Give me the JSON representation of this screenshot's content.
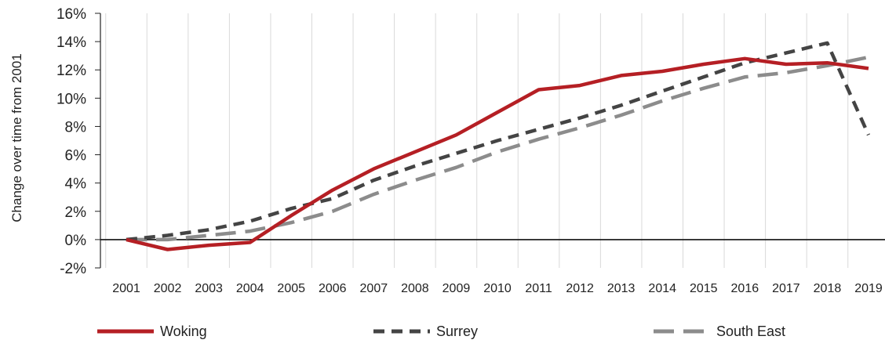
{
  "chart_data": {
    "type": "line",
    "title": "",
    "xlabel": "",
    "ylabel": "Change over time from 2001",
    "x": [
      "2001",
      "2002",
      "2003",
      "2004",
      "2005",
      "2006",
      "2007",
      "2008",
      "2009",
      "2010",
      "2011",
      "2012",
      "2013",
      "2014",
      "2015",
      "2016",
      "2017",
      "2018",
      "2019"
    ],
    "y_ticks": [
      "-2%",
      "0%",
      "2%",
      "4%",
      "6%",
      "8%",
      "10%",
      "12%",
      "14%",
      "16%"
    ],
    "ylim": [
      -2,
      16
    ],
    "y_unit": "%",
    "grid": "vertical",
    "legend_position": "bottom",
    "series": [
      {
        "name": "Woking",
        "color": "#b51f24",
        "style": "solid",
        "values": [
          0.0,
          -0.7,
          -0.4,
          -0.2,
          1.7,
          3.5,
          5.0,
          6.2,
          7.4,
          9.0,
          10.6,
          10.9,
          11.6,
          11.9,
          12.4,
          12.8,
          12.4,
          12.5,
          12.1
        ]
      },
      {
        "name": "Surrey",
        "color": "#444444",
        "style": "short-dash",
        "values": [
          0.0,
          0.3,
          0.7,
          1.3,
          2.2,
          2.9,
          4.2,
          5.2,
          6.1,
          7.0,
          7.8,
          8.6,
          9.5,
          10.5,
          11.5,
          12.5,
          13.2,
          13.9,
          7.4
        ]
      },
      {
        "name": "South East",
        "color": "#8c8c8c",
        "style": "long-dash",
        "values": [
          0.0,
          0.0,
          0.3,
          0.6,
          1.2,
          2.0,
          3.2,
          4.2,
          5.1,
          6.2,
          7.1,
          7.9,
          8.8,
          9.8,
          10.7,
          11.5,
          11.8,
          12.3,
          12.9
        ]
      }
    ]
  }
}
